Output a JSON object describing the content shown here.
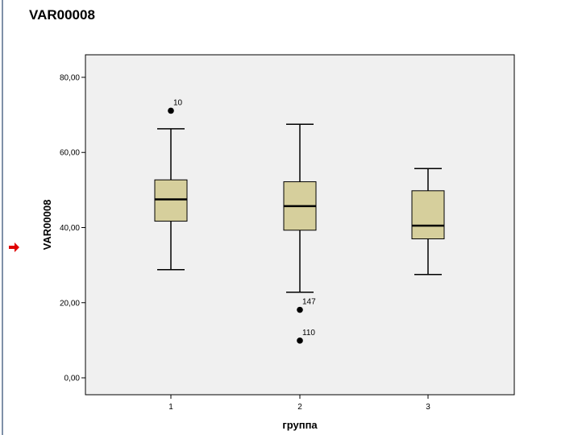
{
  "window": {
    "title": "VAR00008"
  },
  "colors": {
    "box_fill": "#d6cf9c",
    "plot_bg": "#f0f0f0",
    "marker": "#e00000",
    "left_rule": "#7f90a8"
  },
  "icons": {
    "marker": "red-arrow-icon"
  },
  "chart_data": {
    "type": "box",
    "title": "",
    "xlabel": "группа",
    "ylabel": "VAR00008",
    "ylim": [
      -4.5,
      86
    ],
    "yticks": [
      {
        "value": 0,
        "label": "0,00"
      },
      {
        "value": 20,
        "label": "20,00"
      },
      {
        "value": 40,
        "label": "40,00"
      },
      {
        "value": 60,
        "label": "60,00"
      },
      {
        "value": 80,
        "label": "80,00"
      }
    ],
    "grid": false,
    "categories": [
      "1",
      "2",
      "3"
    ],
    "boxes": [
      {
        "category": "1",
        "whisker_low": 28.8,
        "q1": 41.7,
        "median": 47.5,
        "q3": 52.7,
        "whisker_high": 66.3,
        "outliers": [
          {
            "value": 71.1,
            "label": "10"
          }
        ]
      },
      {
        "category": "2",
        "whisker_low": 22.8,
        "q1": 39.3,
        "median": 45.7,
        "q3": 52.2,
        "whisker_high": 67.5,
        "outliers": [
          {
            "value": 18.1,
            "label": "147"
          },
          {
            "value": 9.9,
            "label": "110"
          }
        ]
      },
      {
        "category": "3",
        "whisker_low": 27.5,
        "q1": 37.0,
        "median": 40.5,
        "q3": 49.8,
        "whisker_high": 55.7,
        "outliers": []
      }
    ]
  }
}
